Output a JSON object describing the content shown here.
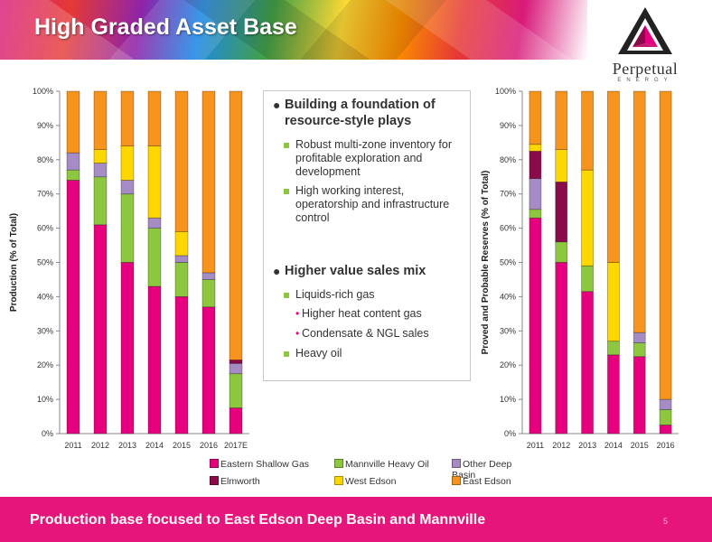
{
  "header": {
    "title": "High Graded Asset Base"
  },
  "logo": {
    "name": "Perpetual",
    "tag": "ENERGY"
  },
  "bullets": {
    "items": [
      {
        "heading": "Building a foundation of resource-style plays",
        "subs": [
          {
            "text": "Robust multi-zone inventory for profitable exploration and development",
            "children": []
          },
          {
            "text": "High working interest, operatorship and infrastructure control",
            "children": []
          }
        ]
      },
      {
        "heading": "Higher value sales mix",
        "subs": [
          {
            "text": "Liquids-rich gas",
            "children": [
              "Higher heat content gas",
              "Condensate & NGL sales"
            ]
          },
          {
            "text": "Heavy oil",
            "children": []
          }
        ]
      }
    ]
  },
  "legend": [
    {
      "name": "Eastern Shallow Gas",
      "color": "#e6007e"
    },
    {
      "name": "Mannville Heavy Oil",
      "color": "#8dc63f"
    },
    {
      "name": "Other Deep Basin",
      "color": "#a68cc4"
    },
    {
      "name": "Elmworth",
      "color": "#8b0a4a"
    },
    {
      "name": "West Edson",
      "color": "#ffd700"
    },
    {
      "name": "East Edson",
      "color": "#f7941d"
    }
  ],
  "chart_data": [
    {
      "type": "bar",
      "stacked": true,
      "ylabel": "Production (% of Total)",
      "ylim": [
        0,
        100
      ],
      "yticks": [
        "0%",
        "10%",
        "20%",
        "30%",
        "40%",
        "50%",
        "60%",
        "70%",
        "80%",
        "90%",
        "100%"
      ],
      "categories": [
        "2011",
        "2012",
        "2013",
        "2014",
        "2015",
        "2016",
        "2017E"
      ],
      "series": [
        {
          "name": "Eastern Shallow Gas",
          "values": [
            74,
            61,
            50,
            43,
            40,
            37,
            7.5
          ]
        },
        {
          "name": "Mannville Heavy Oil",
          "values": [
            3,
            14,
            20,
            17,
            10,
            8,
            10
          ]
        },
        {
          "name": "Other Deep Basin",
          "values": [
            5,
            4,
            4,
            3,
            2,
            2,
            3
          ]
        },
        {
          "name": "Elmworth",
          "values": [
            0,
            0,
            0,
            0,
            0,
            0,
            1
          ]
        },
        {
          "name": "West Edson",
          "values": [
            0,
            4,
            10,
            21,
            7,
            0,
            0
          ]
        },
        {
          "name": "East Edson",
          "values": [
            18,
            17,
            16,
            16,
            41,
            53,
            78.5
          ]
        }
      ]
    },
    {
      "type": "bar",
      "stacked": true,
      "ylabel": "Proved and Probable Reserves (% of Total)",
      "ylim": [
        0,
        100
      ],
      "yticks": [
        "0%",
        "10%",
        "20%",
        "30%",
        "40%",
        "50%",
        "60%",
        "70%",
        "80%",
        "90%",
        "100%"
      ],
      "categories": [
        "2011",
        "2012",
        "2013",
        "2014",
        "2015",
        "2016"
      ],
      "series": [
        {
          "name": "Eastern Shallow Gas",
          "values": [
            63,
            50,
            41.5,
            23,
            22.5,
            2.5
          ]
        },
        {
          "name": "Mannville Heavy Oil",
          "values": [
            2.5,
            6,
            7.5,
            4,
            4,
            4.5
          ]
        },
        {
          "name": "Other Deep Basin",
          "values": [
            9,
            0,
            0,
            0,
            3,
            3
          ]
        },
        {
          "name": "Elmworth",
          "values": [
            8,
            17.5,
            0,
            0,
            0,
            0
          ]
        },
        {
          "name": "West Edson",
          "values": [
            2,
            9.5,
            28,
            23,
            0,
            0
          ]
        },
        {
          "name": "East Edson",
          "values": [
            15.5,
            17,
            23,
            50,
            70.5,
            90
          ]
        }
      ]
    }
  ],
  "footer": {
    "text": "Production base focused to East Edson Deep Basin and Mannville",
    "page": "5"
  }
}
